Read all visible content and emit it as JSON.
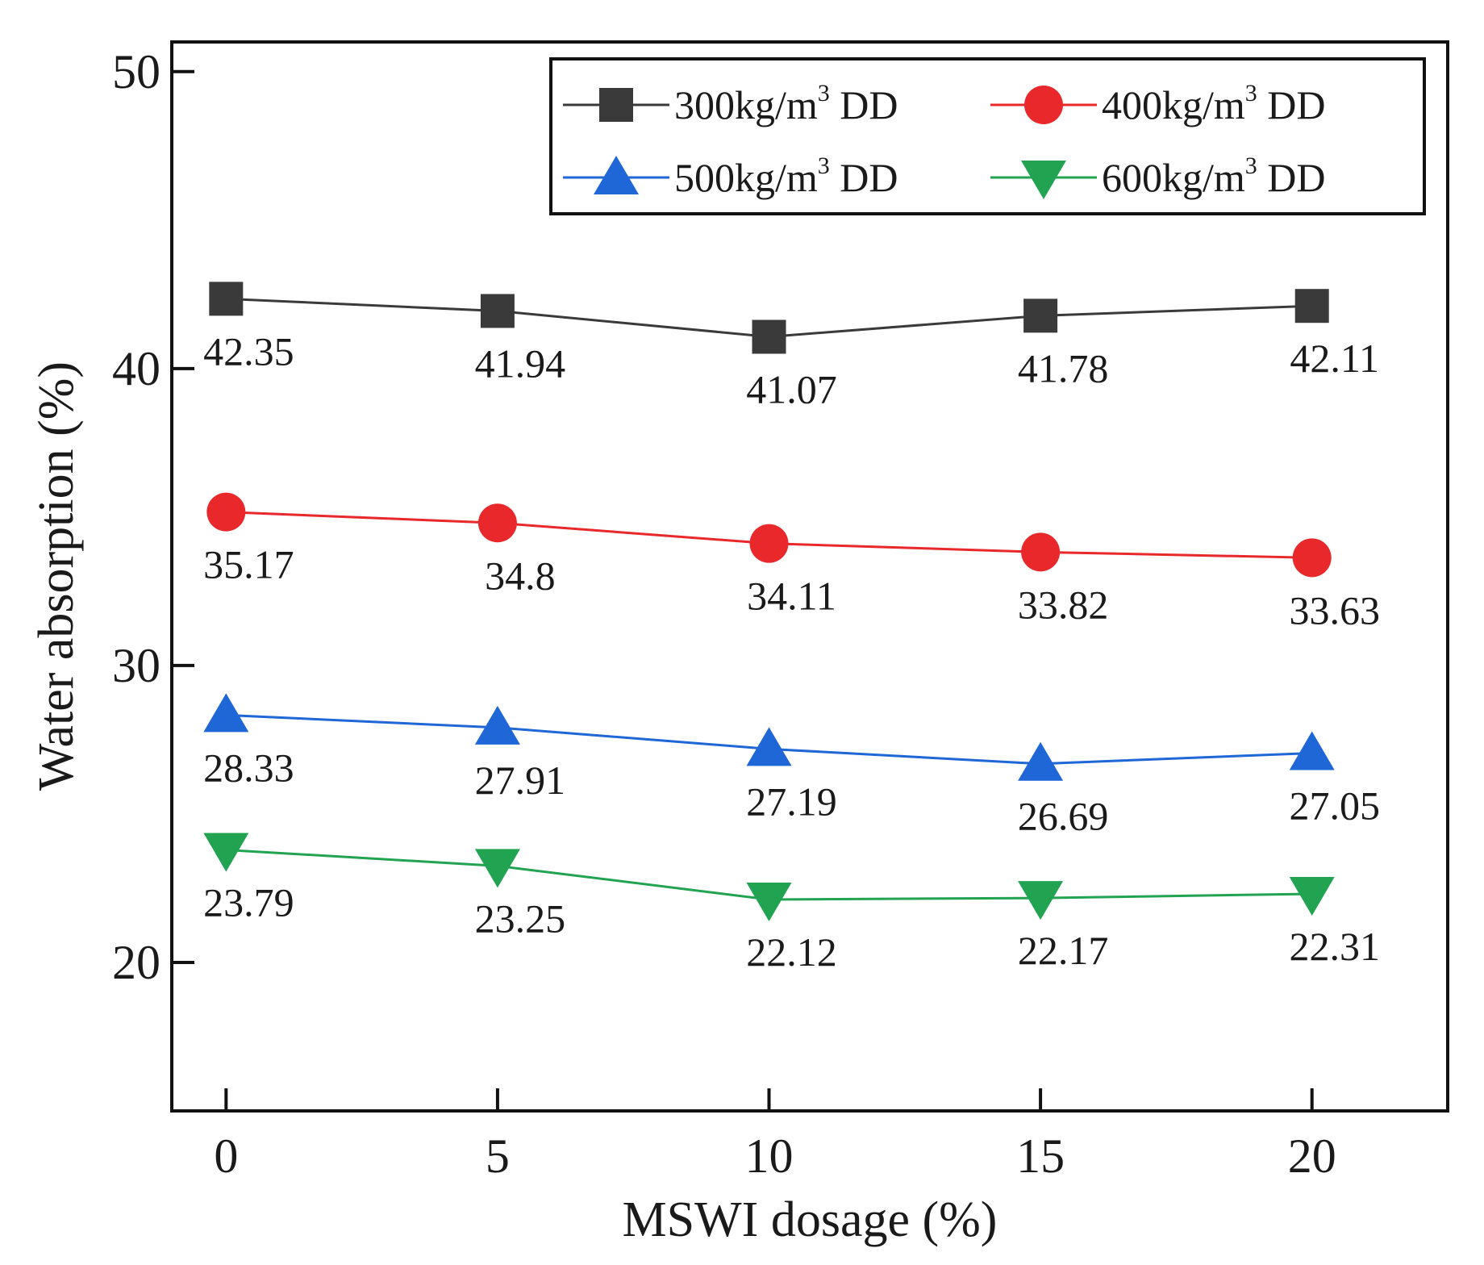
{
  "chart_data": {
    "type": "line",
    "title": "",
    "xlabel": "MSWI dosage (%)",
    "ylabel": "Water absorption (%)",
    "x": [
      0,
      5,
      10,
      15,
      20
    ],
    "xlim": [
      -1,
      22.5
    ],
    "ylim": [
      15,
      51
    ],
    "xticks": [
      "0",
      "5",
      "10",
      "15",
      "20"
    ],
    "yticks": [
      "20",
      "30",
      "40",
      "50"
    ],
    "grid": false,
    "legend_position": "top-right",
    "series": [
      {
        "name": "300kg/m3 DD",
        "legend_prefix": "300kg/m",
        "legend_sup": "3",
        "legend_suffix": " DD",
        "color": "#3a3a3a",
        "marker": "square",
        "values": [
          42.35,
          41.94,
          41.07,
          41.78,
          42.11
        ],
        "labels": [
          "42.35",
          "41.94",
          "41.07",
          "41.78",
          "42.11"
        ]
      },
      {
        "name": "400kg/m3 DD",
        "legend_prefix": "400kg/m",
        "legend_sup": "3",
        "legend_suffix": " DD",
        "color": "#e8282b",
        "marker": "circle",
        "values": [
          35.17,
          34.8,
          34.11,
          33.82,
          33.63
        ],
        "labels": [
          "35.17",
          "34.8",
          "34.11",
          "33.82",
          "33.63"
        ]
      },
      {
        "name": "500kg/m3 DD",
        "legend_prefix": "500kg/m",
        "legend_sup": "3",
        "legend_suffix": " DD",
        "color": "#1f66d6",
        "marker": "triangle-up",
        "values": [
          28.33,
          27.91,
          27.19,
          26.69,
          27.05
        ],
        "labels": [
          "28.33",
          "27.91",
          "27.19",
          "26.69",
          "27.05"
        ]
      },
      {
        "name": "600kg/m3 DD",
        "legend_prefix": "600kg/m",
        "legend_sup": "3",
        "legend_suffix": " DD",
        "color": "#22a352",
        "marker": "triangle-down",
        "values": [
          23.79,
          23.25,
          22.12,
          22.17,
          22.31
        ],
        "labels": [
          "23.79",
          "23.25",
          "22.12",
          "22.17",
          "22.31"
        ]
      }
    ]
  }
}
